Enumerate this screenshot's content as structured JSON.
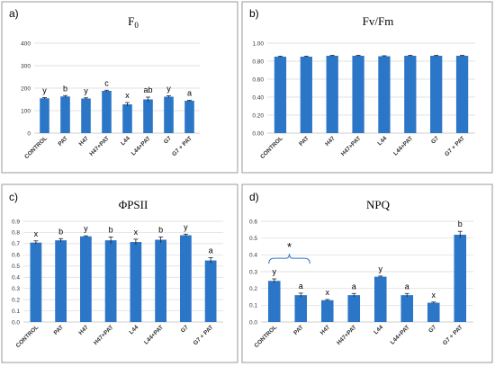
{
  "colors": {
    "bar": "#2c76c7",
    "grid": "#d9d9d9",
    "frame": "#9a9a9a"
  },
  "chart_data": [
    {
      "type": "bar",
      "panel_label": "a)",
      "title": "F",
      "title_subscript": "0",
      "categories": [
        "CONTROL",
        "PAT",
        "H47",
        "H47+PAT",
        "L44",
        "L44+PAT",
        "G7",
        "G7 + PAT"
      ],
      "values": [
        155,
        163,
        154,
        188,
        128,
        150,
        162,
        144
      ],
      "errors": [
        3,
        4,
        3,
        3,
        8,
        10,
        4,
        2
      ],
      "significance_letters": [
        "y",
        "b",
        "y",
        "c",
        "x",
        "ab",
        "y",
        "a"
      ],
      "yticks": [
        "0",
        "100",
        "200",
        "300",
        "400"
      ],
      "ylim": [
        0,
        400
      ],
      "grid": true
    },
    {
      "type": "bar",
      "panel_label": "b)",
      "title": "Fv/Fm",
      "categories": [
        "CONTROL",
        "PAT",
        "H47",
        "H47+PAT",
        "L44",
        "L44+PAT",
        "G7",
        "G7 + PAT"
      ],
      "values": [
        0.85,
        0.85,
        0.86,
        0.86,
        0.855,
        0.86,
        0.86,
        0.86
      ],
      "errors": [
        0.005,
        0.005,
        0.005,
        0.005,
        0.005,
        0.005,
        0.005,
        0.005
      ],
      "significance_letters": [],
      "yticks": [
        "0.00",
        "0.20",
        "0.40",
        "0.60",
        "0.80",
        "1.00"
      ],
      "ylim": [
        0,
        1.0
      ],
      "grid": true
    },
    {
      "type": "bar",
      "panel_label": "c)",
      "title": "ΦPSII",
      "categories": [
        "CONTROL",
        "PAT",
        "H47",
        "H47+PAT",
        "L44",
        "L44+PAT",
        "G7",
        "G7 + PAT"
      ],
      "values": [
        0.71,
        0.73,
        0.765,
        0.73,
        0.715,
        0.735,
        0.775,
        0.55
      ],
      "errors": [
        0.015,
        0.015,
        0.005,
        0.03,
        0.025,
        0.025,
        0.01,
        0.025
      ],
      "significance_letters": [
        "x",
        "b",
        "y",
        "b",
        "x",
        "b",
        "y",
        "a"
      ],
      "yticks": [
        "0.0",
        "0.1",
        "0.2",
        "0.3",
        "0.4",
        "0.5",
        "0.6",
        "0.7",
        "0.8",
        "0.9"
      ],
      "ylim": [
        0,
        0.9
      ],
      "grid": true
    },
    {
      "type": "bar",
      "panel_label": "d)",
      "title": "NPQ",
      "categories": [
        "CONTROL",
        "PAT",
        "H47",
        "H47+PAT",
        "L44",
        "L44+PAT",
        "G7",
        "G7 + PAT"
      ],
      "values": [
        0.245,
        0.16,
        0.13,
        0.16,
        0.27,
        0.16,
        0.115,
        0.52
      ],
      "errors": [
        0.012,
        0.012,
        0.004,
        0.01,
        0.004,
        0.01,
        0.004,
        0.02
      ],
      "significance_letters": [
        "y",
        "a",
        "x",
        "a",
        "y",
        "a",
        "x",
        "b"
      ],
      "yticks": [
        "0.0",
        "0.1",
        "0.2",
        "0.3",
        "0.4",
        "0.5",
        "0.6"
      ],
      "ylim": [
        0,
        0.6
      ],
      "grid": true,
      "bracket_annotation": "*",
      "bracket_span": [
        "CONTROL",
        "PAT"
      ]
    }
  ]
}
